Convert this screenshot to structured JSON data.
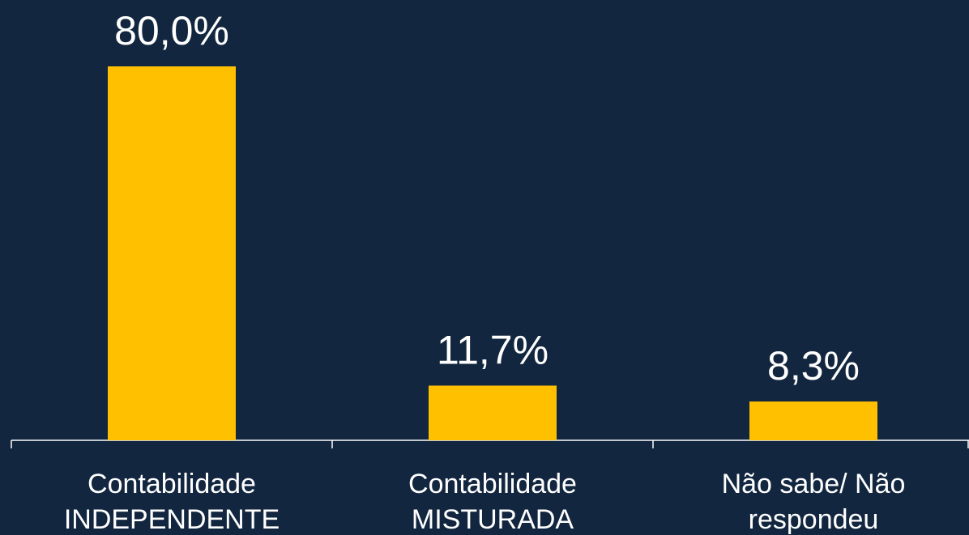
{
  "chart_data": {
    "type": "bar",
    "categories": [
      [
        "Contabilidade",
        "INDEPENDENTE"
      ],
      [
        "Contabilidade",
        "MISTURADA"
      ],
      [
        "Não sabe/ Não",
        "respondeu"
      ]
    ],
    "values": [
      80.0,
      11.7,
      8.3
    ],
    "value_labels": [
      "80,0%",
      "11,7%",
      "8,3%"
    ],
    "color": "#ffc000"
  }
}
